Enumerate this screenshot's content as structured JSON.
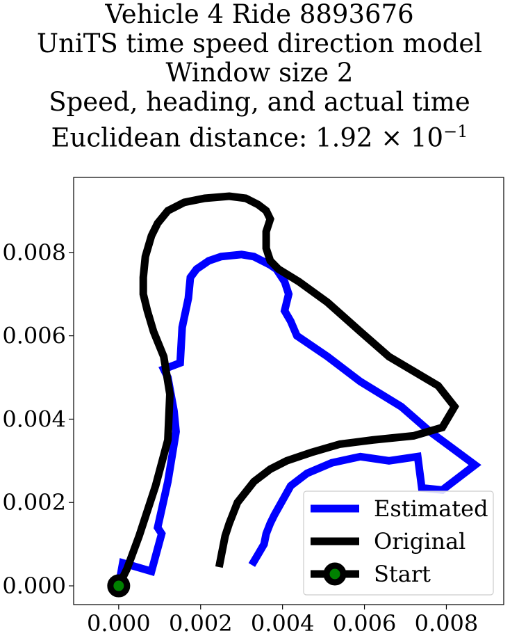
{
  "chart_data": {
    "type": "line",
    "title_lines": [
      "Vehicle 4 Ride 8893676",
      "UniTS time speed direction model",
      "Window size 2",
      "Speed, heading, and actual time"
    ],
    "title_distance_prefix": "Euclidean distance: 1.92",
    "title_distance_suffix": "× 10",
    "title_distance_exponent": "−1",
    "xlim": [
      -0.0011,
      0.0094
    ],
    "ylim": [
      -0.00045,
      0.0098
    ],
    "x_ticks": [
      0.0,
      0.002,
      0.004,
      0.006,
      0.008
    ],
    "x_tick_labels": [
      "0.000",
      "0.002",
      "0.004",
      "0.006",
      "0.008"
    ],
    "y_ticks": [
      0.0,
      0.002,
      0.004,
      0.006,
      0.008
    ],
    "y_tick_labels": [
      "0.000",
      "0.002",
      "0.004",
      "0.006",
      "0.008"
    ],
    "grid": false,
    "legend_position": "lower right",
    "series": [
      {
        "name": "Estimated",
        "color": "#0000ff",
        "points": [
          [
            0.0,
            0.0
          ],
          [
            0.0001,
            0.00055
          ],
          [
            0.0008,
            0.00035
          ],
          [
            0.00105,
            0.00125
          ],
          [
            0.00095,
            0.0014
          ],
          [
            0.0012,
            0.0025
          ],
          [
            0.0014,
            0.0037
          ],
          [
            0.00135,
            0.0042
          ],
          [
            0.0012,
            0.005
          ],
          [
            0.0011,
            0.0052
          ],
          [
            0.0015,
            0.00535
          ],
          [
            0.00155,
            0.0062
          ],
          [
            0.0017,
            0.0069
          ],
          [
            0.00175,
            0.0074
          ],
          [
            0.0019,
            0.0076
          ],
          [
            0.0022,
            0.0078
          ],
          [
            0.0025,
            0.0079
          ],
          [
            0.003,
            0.00795
          ],
          [
            0.0033,
            0.0079
          ],
          [
            0.0037,
            0.0077
          ],
          [
            0.00385,
            0.0076
          ],
          [
            0.00405,
            0.0073
          ],
          [
            0.00415,
            0.007
          ],
          [
            0.00405,
            0.0066
          ],
          [
            0.0042,
            0.00635
          ],
          [
            0.00435,
            0.006
          ],
          [
            0.0051,
            0.0055
          ],
          [
            0.0059,
            0.0049
          ],
          [
            0.0069,
            0.0043
          ],
          [
            0.0076,
            0.0037
          ],
          [
            0.0087,
            0.0029
          ],
          [
            0.0079,
            0.0023
          ],
          [
            0.0074,
            0.00235
          ],
          [
            0.0073,
            0.0031
          ],
          [
            0.0066,
            0.003
          ],
          [
            0.0059,
            0.0031
          ],
          [
            0.0052,
            0.00295
          ],
          [
            0.0046,
            0.0027
          ],
          [
            0.0042,
            0.0024
          ],
          [
            0.0038,
            0.0017
          ],
          [
            0.0037,
            0.0015
          ],
          [
            0.0036,
            0.00125
          ],
          [
            0.00355,
            0.001
          ],
          [
            0.0034,
            0.00075
          ],
          [
            0.00325,
            0.0005
          ]
        ]
      },
      {
        "name": "Original",
        "color": "#000000",
        "points": [
          [
            0.0,
            0.0
          ],
          [
            0.0002,
            0.0004
          ],
          [
            0.0005,
            0.0012
          ],
          [
            0.0009,
            0.0024
          ],
          [
            0.0012,
            0.0035
          ],
          [
            0.00125,
            0.0046
          ],
          [
            0.0011,
            0.0055
          ],
          [
            0.00085,
            0.0061
          ],
          [
            0.0007,
            0.0066
          ],
          [
            0.0006,
            0.007
          ],
          [
            0.0006,
            0.0074
          ],
          [
            0.00065,
            0.0079
          ],
          [
            0.0008,
            0.0084
          ],
          [
            0.00095,
            0.0087
          ],
          [
            0.0012,
            0.009
          ],
          [
            0.0016,
            0.0092
          ],
          [
            0.0021,
            0.0093
          ],
          [
            0.0027,
            0.00935
          ],
          [
            0.0031,
            0.0093
          ],
          [
            0.0034,
            0.00915
          ],
          [
            0.0036,
            0.009
          ],
          [
            0.0037,
            0.0088
          ],
          [
            0.0036,
            0.0085
          ],
          [
            0.0036,
            0.0081
          ],
          [
            0.0037,
            0.0078
          ],
          [
            0.0039,
            0.0076
          ],
          [
            0.0044,
            0.0073
          ],
          [
            0.0051,
            0.0068
          ],
          [
            0.0059,
            0.0061
          ],
          [
            0.0066,
            0.0055
          ],
          [
            0.0078,
            0.0048
          ],
          [
            0.0082,
            0.0043
          ],
          [
            0.0079,
            0.0038
          ],
          [
            0.0072,
            0.0036
          ],
          [
            0.0062,
            0.0035
          ],
          [
            0.0054,
            0.0034
          ],
          [
            0.0047,
            0.0032
          ],
          [
            0.0041,
            0.003
          ],
          [
            0.0037,
            0.0028
          ],
          [
            0.0033,
            0.0025
          ],
          [
            0.0029,
            0.002
          ],
          [
            0.0027,
            0.0015
          ],
          [
            0.0026,
            0.0012
          ],
          [
            0.0025,
            0.0007
          ],
          [
            0.00245,
            0.00045
          ]
        ]
      }
    ],
    "start_marker": {
      "name": "Start",
      "point": [
        0.0,
        0.0
      ],
      "edge_color": "#000000",
      "face_color": "#008000"
    }
  }
}
